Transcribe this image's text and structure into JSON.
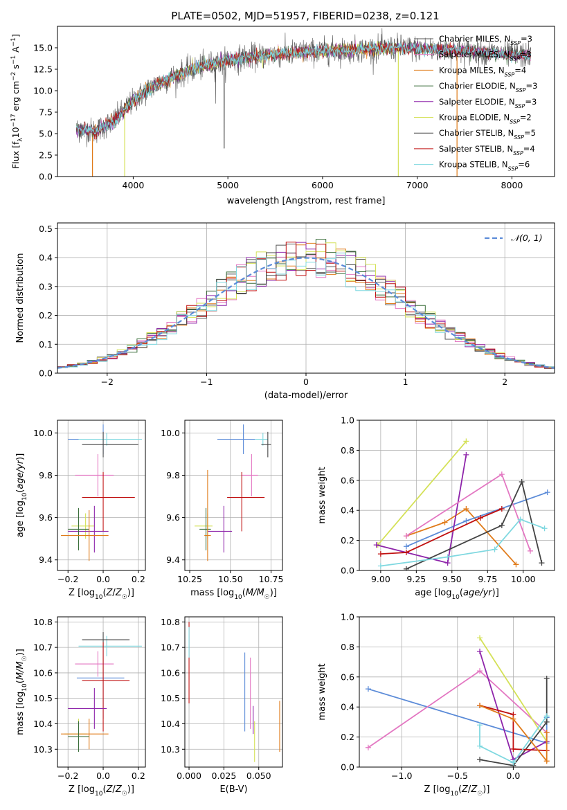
{
  "figure_title": "PLATE=0502, MJD=51957, FIBERID=0238, z=0.121",
  "colors": [
    "#555555",
    "#e377c2",
    "#e07b1a",
    "#3a6e3a",
    "#8e24aa",
    "#d4e157",
    "#444444",
    "#c01010",
    "#7fd8e0",
    "#5b8bd8"
  ],
  "chart_data": [
    {
      "id": "spectrum",
      "type": "line",
      "title": "PLATE=0502, MJD=51957, FIBERID=0238, z=0.121",
      "xlabel": "wavelength [Angstrom, rest frame]",
      "ylabel": "Flux [f",
      "xlim": [
        3200,
        8450
      ],
      "ylim": [
        0,
        17.5
      ],
      "xticks": [
        4000,
        5000,
        6000,
        7000,
        8000
      ],
      "yticks": [
        0.0,
        2.5,
        5.0,
        7.5,
        10.0,
        12.5,
        15.0
      ],
      "grid": false,
      "legend_position": "top-right",
      "series": [
        {
          "name": "Chabrier MILES, N_SSP=3",
          "color": "#555555"
        },
        {
          "name": "Salpeter MILES, N_SSP=3",
          "color": "#e377c2"
        },
        {
          "name": "Kroupa MILES, N_SSP=4",
          "color": "#e07b1a"
        },
        {
          "name": "Chabrier ELODIE, N_SSP=3",
          "color": "#3a6e3a"
        },
        {
          "name": "Salpeter ELODIE, N_SSP=3",
          "color": "#8e24aa"
        },
        {
          "name": "Kroupa ELODIE, N_SSP=2",
          "color": "#d4e157"
        },
        {
          "name": "Chabrier STELIB, N_SSP=5",
          "color": "#444444"
        },
        {
          "name": "Salpeter STELIB, N_SSP=4",
          "color": "#c01010"
        },
        {
          "name": "Kroupa STELIB, N_SSP=6",
          "color": "#7fd8e0"
        }
      ],
      "continuum": {
        "x": [
          3400,
          3600,
          3800,
          4000,
          4200,
          4400,
          4600,
          4800,
          5000,
          5200,
          5400,
          5600,
          5800,
          6000,
          6200,
          6400,
          6600,
          6800,
          7000,
          7200,
          7400,
          7600,
          7800,
          8000,
          8200
        ],
        "y": [
          5.5,
          5.3,
          6.5,
          8.8,
          10.5,
          11.5,
          12.4,
          13.0,
          13.5,
          13.9,
          14.1,
          14.3,
          14.5,
          14.6,
          14.7,
          14.8,
          14.9,
          15.0,
          14.9,
          14.8,
          14.7,
          14.5,
          14.4,
          14.2,
          14.1
        ]
      },
      "model_drops": [
        {
          "series": "Kroupa MILES, N_SSP=4",
          "x_end": 3570
        },
        {
          "series": "Kroupa ELODIE, N_SSP=2",
          "x_end": 3910
        },
        {
          "series": "Kroupa ELODIE, N_SSP=2",
          "x_start": 6800
        },
        {
          "series": "Kroupa MILES, N_SSP=4",
          "x_start": 7420
        }
      ]
    },
    {
      "id": "residuals",
      "type": "line",
      "xlabel": "(data-model)/error",
      "ylabel": "Normed distribution",
      "xlim": [
        -2.5,
        2.5
      ],
      "ylim": [
        0,
        0.52
      ],
      "xticks": [
        -2,
        -1,
        0,
        1,
        2
      ],
      "xticklabels": [
        "−2",
        "−1",
        "0",
        "1",
        "2"
      ],
      "yticks": [
        0.0,
        0.1,
        0.2,
        0.3,
        0.4,
        0.5
      ],
      "grid": true,
      "legend_position": "top-right",
      "legend": "𝒩(0, 1)",
      "reference_curve": "normal(0,1)",
      "bin_width": 0.1
    },
    {
      "id": "age-vs-Z",
      "type": "scatter",
      "xlabel": "Z [log",
      "ylabel": "age  [log",
      "xlim": [
        -0.26,
        0.24
      ],
      "ylim": [
        9.35,
        10.06
      ],
      "xticks": [
        -0.2,
        0.0,
        0.2
      ],
      "xticklabels": [
        "−0.2",
        "0.0",
        "0.2"
      ],
      "yticks": [
        9.4,
        9.6,
        9.8,
        10.0
      ],
      "grid": true,
      "points": [
        {
          "x": 0.0,
          "y": 9.97,
          "xerr": [
            0.2,
            0.2
          ],
          "yerr": [
            0.07,
            0.07
          ],
          "color": "#5b8bd8"
        },
        {
          "x": 0.02,
          "y": 9.97,
          "xerr": [
            0.16,
            0.2
          ],
          "yerr": [
            0.03,
            0.03
          ],
          "color": "#7fd8e0"
        },
        {
          "x": 0.0,
          "y": 9.945,
          "xerr": [
            0.12,
            0.2
          ],
          "yerr": [
            0.06,
            0.06
          ],
          "color": "#444444"
        },
        {
          "x": -0.03,
          "y": 9.8,
          "xerr": [
            0.13,
            0.09
          ],
          "yerr": [
            0.1,
            0.1
          ],
          "color": "#e377c2"
        },
        {
          "x": 0.0,
          "y": 9.695,
          "xerr": [
            0.12,
            0.18
          ],
          "yerr": [
            0.16,
            0.12
          ],
          "color": "#c01010"
        },
        {
          "x": -0.1,
          "y": 9.56,
          "xerr": [
            0.08,
            0.05
          ],
          "yerr": [
            0.06,
            0.06
          ],
          "color": "#d4e157"
        },
        {
          "x": -0.05,
          "y": 9.535,
          "xerr": [
            0.15,
            0.08
          ],
          "yerr": [
            0.1,
            0.12
          ],
          "color": "#8e24aa"
        },
        {
          "x": -0.14,
          "y": 9.545,
          "xerr": [
            0.06,
            0.06
          ],
          "yerr": [
            0.1,
            0.1
          ],
          "color": "#3a6e3a"
        },
        {
          "x": -0.08,
          "y": 9.515,
          "xerr": [
            0.16,
            0.11
          ],
          "yerr": [
            0.12,
            0.12
          ],
          "color": "#e07b1a"
        }
      ]
    },
    {
      "id": "age-vs-mass",
      "type": "scatter",
      "xlabel": "mass [log",
      "ylabel": "",
      "xlim": [
        10.22,
        10.82
      ],
      "ylim": [
        9.35,
        10.06
      ],
      "xticks": [
        10.25,
        10.5,
        10.75
      ],
      "yticks": [
        9.4,
        9.6,
        9.8,
        10.0
      ],
      "grid": true,
      "points": [
        {
          "x": 10.58,
          "y": 9.97,
          "xerr": [
            0.16,
            0.14
          ],
          "yerr": [
            0.07,
            0.07
          ],
          "color": "#5b8bd8"
        },
        {
          "x": 10.7,
          "y": 9.97,
          "xerr": [
            0.05,
            0.03
          ],
          "yerr": [
            0.03,
            0.03
          ],
          "color": "#7fd8e0"
        },
        {
          "x": 10.73,
          "y": 9.945,
          "xerr": [
            0.04,
            0.02
          ],
          "yerr": [
            0.06,
            0.06
          ],
          "color": "#444444"
        },
        {
          "x": 10.63,
          "y": 9.8,
          "xerr": [
            0.06,
            0.04
          ],
          "yerr": [
            0.1,
            0.1
          ],
          "color": "#e377c2"
        },
        {
          "x": 10.57,
          "y": 9.695,
          "xerr": [
            0.09,
            0.14
          ],
          "yerr": [
            0.16,
            0.12
          ],
          "color": "#c01010"
        },
        {
          "x": 10.36,
          "y": 9.56,
          "xerr": [
            0.08,
            0.03
          ],
          "yerr": [
            0.06,
            0.06
          ],
          "color": "#d4e157"
        },
        {
          "x": 10.46,
          "y": 9.535,
          "xerr": [
            0.1,
            0.05
          ],
          "yerr": [
            0.1,
            0.12
          ],
          "color": "#8e24aa"
        },
        {
          "x": 10.35,
          "y": 9.545,
          "xerr": [
            0.04,
            0.03
          ],
          "yerr": [
            0.1,
            0.1
          ],
          "color": "#3a6e3a"
        },
        {
          "x": 10.36,
          "y": 9.515,
          "xerr": [
            0.02,
            0.02
          ],
          "yerr": [
            0.12,
            0.31
          ],
          "color": "#e07b1a"
        }
      ]
    },
    {
      "id": "weight-vs-age",
      "type": "line",
      "xlabel": "age  [log",
      "ylabel": "mass weight",
      "xlim": [
        8.85,
        10.22
      ],
      "ylim": [
        0,
        1.0
      ],
      "xticks": [
        9.0,
        9.25,
        9.5,
        9.75,
        10.0
      ],
      "yticks": [
        0.0,
        0.2,
        0.4,
        0.6,
        0.8,
        1.0
      ],
      "grid": true,
      "series": [
        {
          "color": "#e07b1a",
          "x": [
            9.18,
            9.45,
            9.6,
            9.95
          ],
          "y": [
            0.23,
            0.32,
            0.41,
            0.04
          ]
        },
        {
          "color": "#5b8bd8",
          "x": [
            9.18,
            9.6,
            10.17
          ],
          "y": [
            0.16,
            0.33,
            0.52
          ]
        },
        {
          "color": "#d4e157",
          "x": [
            8.98,
            9.6
          ],
          "y": [
            0.17,
            0.86
          ]
        },
        {
          "color": "#8e24aa",
          "x": [
            8.97,
            9.47,
            9.6
          ],
          "y": [
            0.17,
            0.05,
            0.77
          ]
        },
        {
          "color": "#e377c2",
          "x": [
            9.18,
            9.85,
            10.05
          ],
          "y": [
            0.23,
            0.64,
            0.13
          ]
        },
        {
          "color": "#444444",
          "x": [
            9.18,
            9.85,
            9.99,
            10.13
          ],
          "y": [
            0.01,
            0.3,
            0.59,
            0.05
          ]
        },
        {
          "color": "#c01010",
          "x": [
            9.0,
            9.18,
            9.7,
            9.85
          ],
          "y": [
            0.11,
            0.12,
            0.35,
            0.41
          ]
        },
        {
          "color": "#7fd8e0",
          "x": [
            9.0,
            9.47,
            9.8,
            9.98,
            10.15
          ],
          "y": [
            0.03,
            0.09,
            0.14,
            0.34,
            0.28
          ]
        }
      ]
    },
    {
      "id": "mass-vs-Z",
      "type": "scatter",
      "xlabel": "Z [log",
      "ylabel": "mass [log",
      "xlim": [
        -0.26,
        0.24
      ],
      "ylim": [
        10.23,
        10.82
      ],
      "xticks": [
        -0.2,
        0.0,
        0.2
      ],
      "xticklabels": [
        "−0.2",
        "0.0",
        "0.2"
      ],
      "yticks": [
        10.3,
        10.4,
        10.5,
        10.6,
        10.7,
        10.8
      ],
      "grid": true,
      "points": [
        {
          "x": 0.02,
          "y": 10.705,
          "xerr": [
            0.16,
            0.2
          ],
          "yerr": [
            0.04,
            0.04
          ],
          "color": "#7fd8e0"
        },
        {
          "x": 0.0,
          "y": 10.73,
          "xerr": [
            0.12,
            0.15
          ],
          "yerr": [
            0.03,
            0.03
          ],
          "color": "#444444"
        },
        {
          "x": -0.03,
          "y": 10.635,
          "xerr": [
            0.13,
            0.09
          ],
          "yerr": [
            0.05,
            0.05
          ],
          "color": "#e377c2"
        },
        {
          "x": 0.0,
          "y": 10.58,
          "xerr": [
            0.15,
            0.12
          ],
          "yerr": [
            0.16,
            0.12
          ],
          "color": "#5b8bd8"
        },
        {
          "x": 0.0,
          "y": 10.57,
          "xerr": [
            0.12,
            0.15
          ],
          "yerr": [
            0.2,
            0.15
          ],
          "color": "#c01010"
        },
        {
          "x": -0.05,
          "y": 10.46,
          "xerr": [
            0.15,
            0.07
          ],
          "yerr": [
            0.08,
            0.08
          ],
          "color": "#8e24aa"
        },
        {
          "x": -0.14,
          "y": 10.36,
          "xerr": [
            0.08,
            0.05
          ],
          "yerr": [
            0.06,
            0.06
          ],
          "color": "#d4e157"
        },
        {
          "x": -0.08,
          "y": 10.36,
          "xerr": [
            0.16,
            0.11
          ],
          "yerr": [
            0.06,
            0.06
          ],
          "color": "#e07b1a"
        },
        {
          "x": -0.14,
          "y": 10.35,
          "xerr": [
            0.06,
            0.06
          ],
          "yerr": [
            0.06,
            0.06
          ],
          "color": "#3a6e3a"
        }
      ]
    },
    {
      "id": "mass-vs-ebv",
      "type": "scatter",
      "xlabel": "E(B-V)",
      "ylabel": "",
      "xlim": [
        -0.003,
        0.067
      ],
      "ylim": [
        10.23,
        10.82
      ],
      "xticks": [
        0.0,
        0.025,
        0.05
      ],
      "xticklabels": [
        "0.000",
        "0.025",
        "0.050"
      ],
      "yticks": [
        10.3,
        10.4,
        10.5,
        10.6,
        10.7,
        10.8
      ],
      "grid": true,
      "points": [
        {
          "x": 0.0,
          "y": 10.64,
          "yerr": [
            0.16,
            0.16
          ],
          "color": "#c01010"
        },
        {
          "x": 0.0,
          "y": 10.72,
          "yerr": [
            0.06,
            0.06
          ],
          "color": "#7fd8e0"
        },
        {
          "x": 0.04,
          "y": 10.52,
          "yerr": [
            0.15,
            0.16
          ],
          "color": "#5b8bd8"
        },
        {
          "x": 0.044,
          "y": 10.5,
          "yerr": [
            0.12,
            0.16
          ],
          "color": "#e377c2"
        },
        {
          "x": 0.046,
          "y": 10.41,
          "yerr": [
            0.05,
            0.06
          ],
          "color": "#8e24aa"
        },
        {
          "x": 0.047,
          "y": 10.33,
          "yerr": [
            0.08,
            0.08
          ],
          "color": "#d4e157"
        },
        {
          "x": 0.065,
          "y": 10.39,
          "yerr": [
            0.1,
            0.1
          ],
          "color": "#e07b1a"
        }
      ]
    },
    {
      "id": "weight-vs-Z",
      "type": "line",
      "xlabel": "Z [log",
      "ylabel": "mass weight",
      "xlim": [
        -1.38,
        0.37
      ],
      "ylim": [
        0,
        1.0
      ],
      "xticks": [
        -1.0,
        -0.5,
        0.0
      ],
      "xticklabels": [
        "−1.0",
        "−0.5",
        "0.0"
      ],
      "yticks": [
        0.0,
        0.2,
        0.4,
        0.6,
        0.8,
        1.0
      ],
      "grid": true,
      "series": [
        {
          "color": "#5b8bd8",
          "x": [
            -1.3,
            0.3,
            0.3
          ],
          "y": [
            0.52,
            0.16,
            0.33
          ]
        },
        {
          "color": "#e377c2",
          "x": [
            -1.3,
            -0.3,
            0.3
          ],
          "y": [
            0.13,
            0.64,
            0.23
          ]
        },
        {
          "color": "#d4e157",
          "x": [
            -0.3,
            0.3
          ],
          "y": [
            0.86,
            0.17
          ]
        },
        {
          "color": "#8e24aa",
          "x": [
            -0.3,
            0.0,
            0.3
          ],
          "y": [
            0.77,
            0.05,
            0.17
          ]
        },
        {
          "color": "#444444",
          "x": [
            -0.3,
            0.0,
            0.3,
            0.3
          ],
          "y": [
            0.05,
            0.01,
            0.3,
            0.59
          ]
        },
        {
          "color": "#c01010",
          "x": [
            -0.3,
            0.0,
            0.0,
            0.3
          ],
          "y": [
            0.41,
            0.35,
            0.12,
            0.11
          ]
        },
        {
          "color": "#e07b1a",
          "x": [
            -0.3,
            0.0,
            0.3,
            0.3
          ],
          "y": [
            0.41,
            0.32,
            0.04,
            0.23
          ]
        },
        {
          "color": "#7fd8e0",
          "x": [
            -0.3,
            -0.3,
            0.0,
            0.3
          ],
          "y": [
            0.28,
            0.14,
            0.03,
            0.34
          ]
        }
      ]
    }
  ]
}
